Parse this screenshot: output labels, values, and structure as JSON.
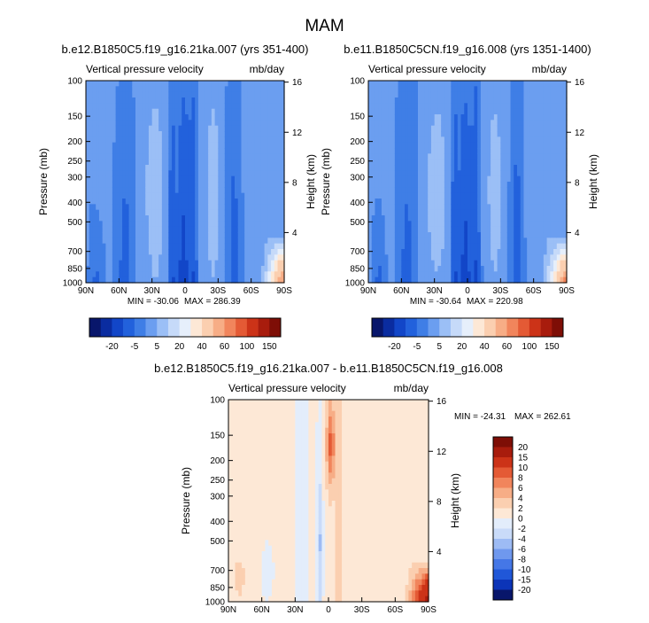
{
  "figure": {
    "title": "MAM"
  },
  "colors": {
    "panel_palette": [
      "#08166b",
      "#0a2ca0",
      "#1246c8",
      "#2261dc",
      "#3f7ee6",
      "#6b9ef0",
      "#9bbff6",
      "#c6daf9",
      "#e6effb",
      "#fde8d6",
      "#fbcfb0",
      "#f7ad86",
      "#f1855c",
      "#e45a35",
      "#cc3318",
      "#a81c0d",
      "#7e0e06"
    ],
    "diff_palette": [
      "#08166b",
      "#0c34b8",
      "#2057d8",
      "#4577e6",
      "#6f98ee",
      "#9dbbf4",
      "#c9dbf9",
      "#e3edfb",
      "#fde8d6",
      "#fbcfb0",
      "#f7ad86",
      "#f1855c",
      "#e45a35",
      "#cc3318",
      "#a81c0d",
      "#7e0e06"
    ]
  },
  "chart_data": [
    {
      "type": "heatmap",
      "title": "b.e12.B1850C5.f19_g16.21ka.007 (yrs 351-400)",
      "variable": "Vertical pressure velocity",
      "units": "mb/day",
      "ylabel": "Pressure (mb)",
      "ylabel_right": "Height (km)",
      "x_ticks": [
        "90N",
        "60N",
        "30N",
        "0",
        "30S",
        "60S",
        "90S"
      ],
      "x_range": [
        90,
        -90
      ],
      "y_ticks": [
        100,
        150,
        200,
        250,
        300,
        400,
        500,
        700,
        850,
        1000
      ],
      "y_range": [
        100,
        1000
      ],
      "y_scale": "log",
      "height_ticks": [
        16,
        12,
        8,
        4
      ],
      "min_label": "MIN = -30.06",
      "max_label": "MAX = 286.39",
      "min": -30.06,
      "max": 286.39,
      "colorbar_labels": [
        "-20",
        "-5",
        "5",
        "20",
        "40",
        "60",
        "100",
        "150"
      ]
    },
    {
      "type": "heatmap",
      "title": "b.e11.B1850C5CN.f19_g16.008 (yrs 1351-1400)",
      "variable": "Vertical pressure velocity",
      "units": "mb/day",
      "ylabel": "Pressure (mb)",
      "ylabel_right": "Height (km)",
      "x_ticks": [
        "90N",
        "60N",
        "30N",
        "0",
        "30S",
        "60S",
        "90S"
      ],
      "x_range": [
        90,
        -90
      ],
      "y_ticks": [
        100,
        150,
        200,
        250,
        300,
        400,
        500,
        700,
        850,
        1000
      ],
      "y_range": [
        100,
        1000
      ],
      "y_scale": "log",
      "height_ticks": [
        16,
        12,
        8,
        4
      ],
      "min_label": "MIN = -30.64",
      "max_label": "MAX = 220.98",
      "min": -30.64,
      "max": 220.98,
      "colorbar_labels": [
        "-20",
        "-5",
        "5",
        "20",
        "40",
        "60",
        "100",
        "150"
      ]
    },
    {
      "type": "heatmap",
      "title": "b.e12.B1850C5.f19_g16.21ka.007 - b.e11.B1850C5CN.f19_g16.008",
      "variable": "Vertical pressure velocity",
      "units": "mb/day",
      "ylabel": "Pressure (mb)",
      "ylabel_right": "Height (km)",
      "x_ticks": [
        "90N",
        "60N",
        "30N",
        "0",
        "30S",
        "60S",
        "90S"
      ],
      "x_range": [
        90,
        -90
      ],
      "y_ticks": [
        100,
        150,
        200,
        250,
        300,
        400,
        500,
        700,
        850,
        1000
      ],
      "y_range": [
        100,
        1000
      ],
      "y_scale": "log",
      "height_ticks": [
        16,
        12,
        8,
        4
      ],
      "min_label": "MIN = -24.31",
      "max_label": "MAX = 262.61",
      "min": -24.31,
      "max": 262.61,
      "colorbar_labels": [
        "20",
        "15",
        "10",
        "8",
        "6",
        "4",
        "2",
        "0",
        "-2",
        "-4",
        "-6",
        "-8",
        "-10",
        "-15",
        "-20"
      ]
    }
  ]
}
